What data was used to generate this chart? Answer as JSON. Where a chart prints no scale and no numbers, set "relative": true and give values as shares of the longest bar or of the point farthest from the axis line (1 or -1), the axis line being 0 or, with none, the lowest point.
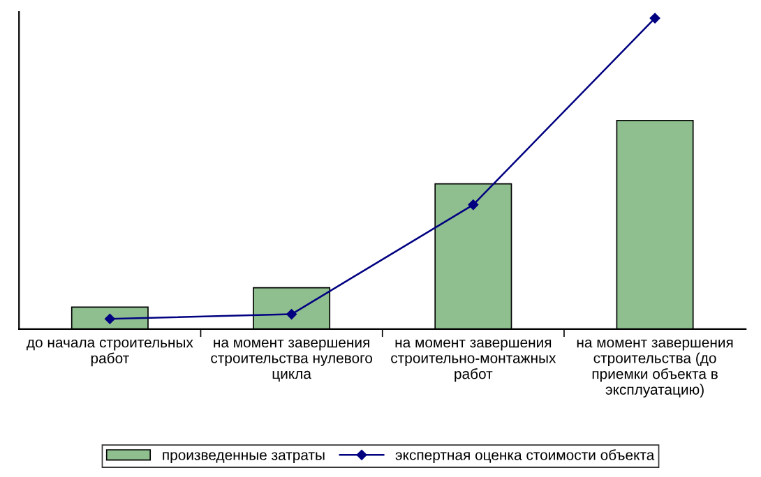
{
  "chart_data": {
    "type": "bar",
    "relative": true,
    "categories": [
      "до начала строительных\nработ",
      "на момент завершения\nстроительства нулевого\nцикла",
      "на момент завершения\nстроительно-монтажных\nработ",
      "на момент завершения\nстроительства (до\nприемки объекта в\nэксплуатацию)"
    ],
    "series": [
      {
        "name": "произведенные затраты",
        "color": "#8fbf8f",
        "values": [
          0.071,
          0.133,
          0.467,
          0.671
        ]
      },
      {
        "name": "экспертная оценка стоимости объекта",
        "type": "line",
        "color": "#000080",
        "values": [
          0.033,
          0.048,
          0.4,
          1.0
        ]
      }
    ],
    "marker": "diamond",
    "line_style": "solid",
    "legend": "bottom",
    "grid": false
  }
}
